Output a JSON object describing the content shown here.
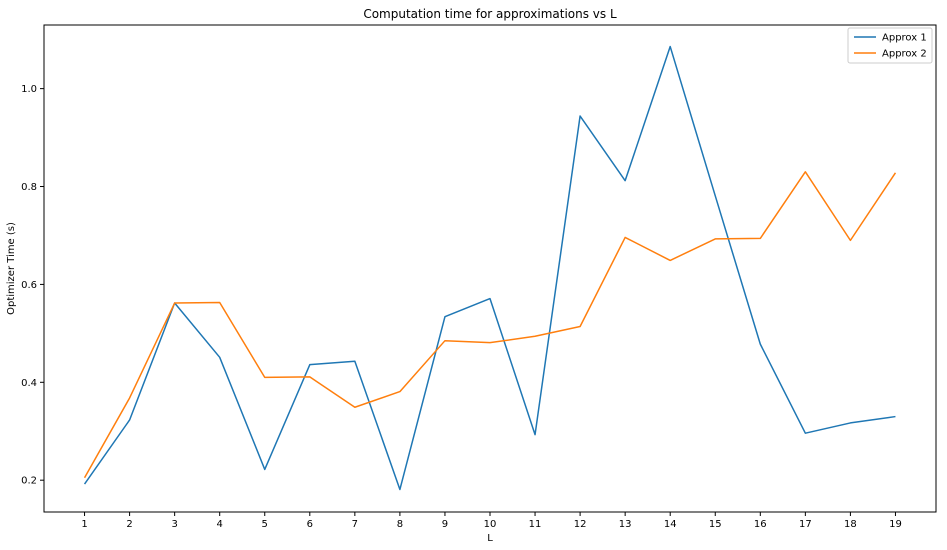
{
  "chart_data": {
    "type": "line",
    "title": "Computation time for approximations vs L",
    "xlabel": "L",
    "ylabel": "Optimizer Time (s)",
    "x": [
      1,
      2,
      3,
      4,
      5,
      6,
      7,
      8,
      9,
      10,
      11,
      12,
      13,
      14,
      15,
      16,
      17,
      18,
      19
    ],
    "xlim": [
      0.1,
      19.9
    ],
    "ylim": [
      0.135,
      1.13
    ],
    "xticks": [
      1,
      2,
      3,
      4,
      5,
      6,
      7,
      8,
      9,
      10,
      11,
      12,
      13,
      14,
      15,
      16,
      17,
      18,
      19
    ],
    "yticks": [
      0.2,
      0.4,
      0.6,
      0.8,
      1.0
    ],
    "ytick_labels": [
      "0.2",
      "0.4",
      "0.6",
      "0.8",
      "1.0"
    ],
    "grid": false,
    "legend_position": "top-right",
    "series": [
      {
        "name": "Approx 1",
        "color": "#1f77b4",
        "values": [
          0.192,
          0.323,
          0.562,
          0.451,
          0.222,
          0.436,
          0.443,
          0.181,
          0.534,
          0.571,
          0.293,
          0.944,
          0.812,
          1.086,
          0.781,
          0.478,
          0.296,
          0.317,
          0.33
        ]
      },
      {
        "name": "Approx 2",
        "color": "#ff7f0e",
        "values": [
          0.205,
          0.368,
          0.562,
          0.563,
          0.41,
          0.411,
          0.349,
          0.381,
          0.485,
          0.481,
          0.494,
          0.514,
          0.696,
          0.649,
          0.693,
          0.694,
          0.83,
          0.69,
          0.828
        ]
      }
    ]
  }
}
